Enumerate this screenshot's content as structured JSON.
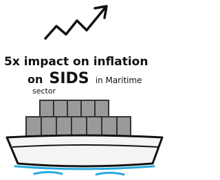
{
  "caption": {
    "line1": "5x impact on inflation",
    "line2_start": "on",
    "line2_emphasis": "SIDS",
    "line2_end": "in Maritime",
    "line3": "sector"
  }
}
